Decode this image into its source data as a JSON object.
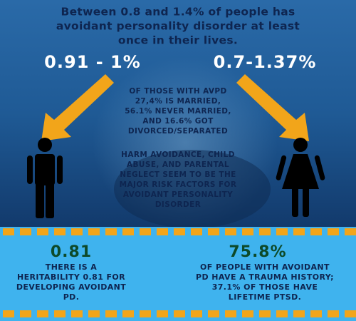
{
  "title": {
    "lines": [
      "Between 0.8 and 1.4% of people has",
      "avoidant personality disorder at least",
      "once in their lives."
    ]
  },
  "left_range": "0.91 - 1%",
  "right_range": "0.7-1.37%",
  "marriage": {
    "lines": [
      "OF THOSE WITH AVPD",
      "27,4% IS MARRIED,",
      "56.1% NEVER MARRIED,",
      "AND 16.6% GOT",
      "DIVORCED/SEPARATED"
    ]
  },
  "risk": {
    "lines": [
      "HARM AVOIDANCE, CHILD",
      "ABUSE, AND PARENTAL",
      "NEGLECT SEEM TO BE THE",
      "MAJOR RISK FACTORS FOR",
      "AVOIDANT PERSONALITY",
      "DISORDER"
    ]
  },
  "heritability": {
    "stat": "0.81",
    "lines": [
      "THERE IS A",
      "HERITABILITY 0.81 FOR",
      "DEVELOPING AVOIDANT",
      "PD."
    ]
  },
  "trauma": {
    "stat": "75.8%",
    "lines": [
      "OF PEOPLE WITH AVOIDANT",
      "PD HAVE A TRAUMA HISTORY;",
      "37.1% OF THOSE HAVE",
      "LIFETIME PTSD."
    ]
  }
}
